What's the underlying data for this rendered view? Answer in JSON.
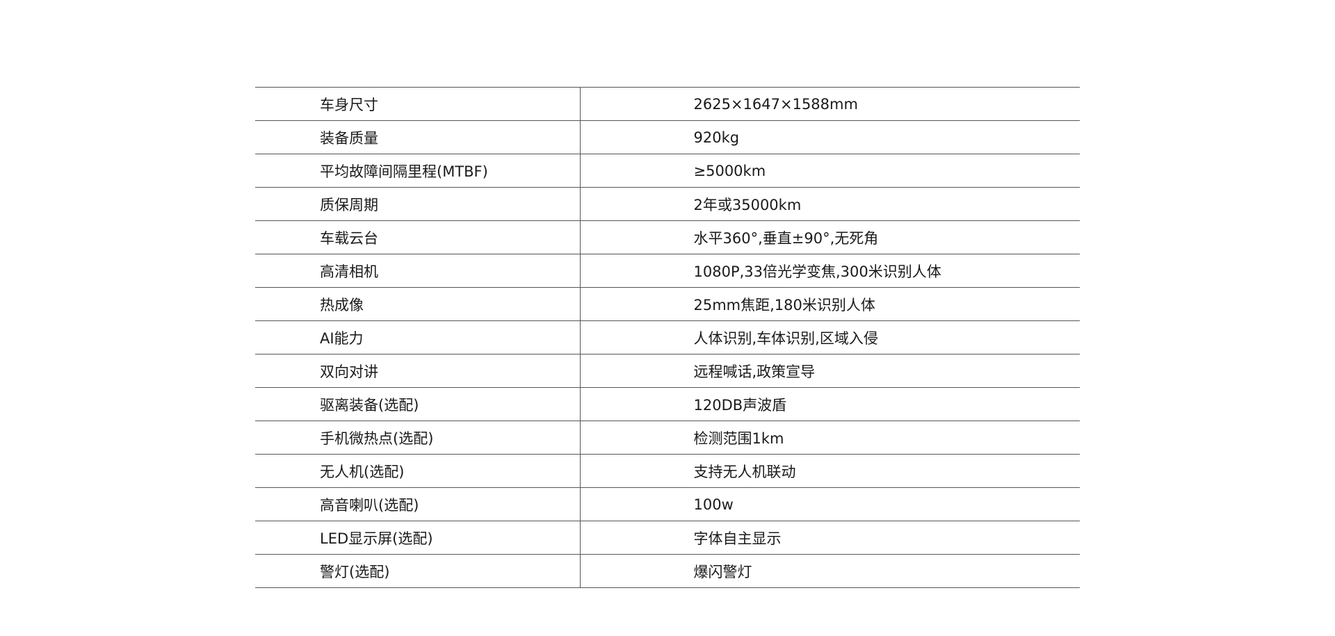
{
  "specs": [
    {
      "label": "车身尺寸",
      "value": "2625×1647×1588mm"
    },
    {
      "label": "装备质量",
      "value": "920kg"
    },
    {
      "label": "平均故障间隔里程(MTBF)",
      "value": "≥5000km"
    },
    {
      "label": "质保周期",
      "value": "2年或35000km"
    },
    {
      "label": "车载云台",
      "value": "水平360°,垂直±90°,无死角"
    },
    {
      "label": "高清相机",
      "value": "1080P,33倍光学变焦,300米识别人体"
    },
    {
      "label": "热成像",
      "value": "25mm焦距,180米识别人体"
    },
    {
      "label": "AI能力",
      "value": "人体识别,车体识别,区域入侵"
    },
    {
      "label": "双向对讲",
      "value": "远程喊话,政策宣导"
    },
    {
      "label": "驱离装备(选配)",
      "value": "120DB声波盾"
    },
    {
      "label": "手机微热点(选配)",
      "value": "检测范围1km"
    },
    {
      "label": "无人机(选配)",
      "value": "支持无人机联动"
    },
    {
      "label": "高音喇叭(选配)",
      "value": "100w"
    },
    {
      "label": "LED显示屏(选配)",
      "value": "字体自主显示"
    },
    {
      "label": "警灯(选配)",
      "value": "爆闪警灯"
    }
  ]
}
